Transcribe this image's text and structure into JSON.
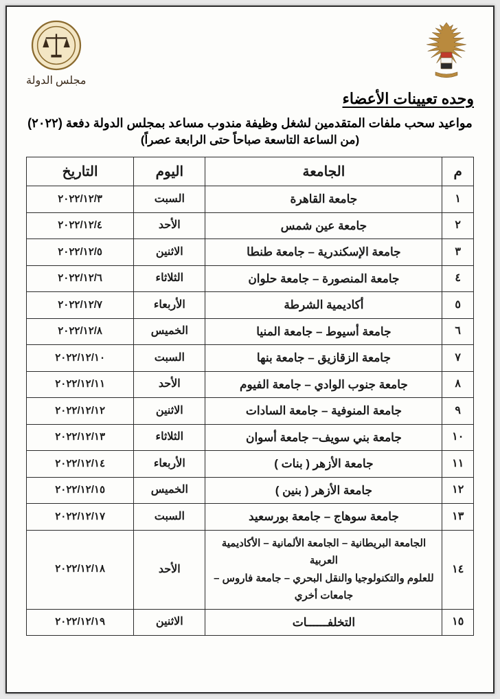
{
  "logos": {
    "eagle_caption": "",
    "seal_caption": "مجلس الدولة"
  },
  "department_title": "وحده تعيينات الأعضاء",
  "main_title": "مواعيد سحب ملفات المتقدمين لشغل وظيفة مندوب  مساعد بمجلس الدولة دفعة (٢٠٢٢)",
  "sub_title": "(من الساعة التاسعة صباحاً حتى الرابعة عصراً)",
  "table": {
    "headers": {
      "num": "م",
      "university": "الجامعة",
      "day": "اليوم",
      "date": "التاريخ"
    },
    "rows": [
      {
        "n": "١",
        "u": "جامعة القاهرة",
        "d": "السبت",
        "t": "٢٠٢٢/١٢/٣"
      },
      {
        "n": "٢",
        "u": "جامعة عين شمس",
        "d": "الأحد",
        "t": "٢٠٢٢/١٢/٤"
      },
      {
        "n": "٣",
        "u": "جامعة الإسكندرية – جامعة طنطا",
        "d": "الاثنين",
        "t": "٢٠٢٢/١٢/٥"
      },
      {
        "n": "٤",
        "u": "جامعة المنصورة – جامعة حلوان",
        "d": "الثلاثاء",
        "t": "٢٠٢٢/١٢/٦"
      },
      {
        "n": "٥",
        "u": "أكاديمية الشرطة",
        "d": "الأربعاء",
        "t": "٢٠٢٢/١٢/٧"
      },
      {
        "n": "٦",
        "u": "جامعة أسيوط – جامعة المنيا",
        "d": "الخميس",
        "t": "٢٠٢٢/١٢/٨"
      },
      {
        "n": "٧",
        "u": "جامعة الزقازيق – جامعة بنها",
        "d": "السبت",
        "t": "٢٠٢٢/١٢/١٠"
      },
      {
        "n": "٨",
        "u": "جامعة جنوب الوادي – جامعة الفيوم",
        "d": "الأحد",
        "t": "٢٠٢٢/١٢/١١"
      },
      {
        "n": "٩",
        "u": "جامعة المنوفية – جامعة السادات",
        "d": "الاثنين",
        "t": "٢٠٢٢/١٢/١٢"
      },
      {
        "n": "١٠",
        "u": "جامعة بني سويف– جامعة أسوان",
        "d": "الثلاثاء",
        "t": "٢٠٢٢/١٢/١٣"
      },
      {
        "n": "١١",
        "u": "جامعة الأزهر ( بنات )",
        "d": "الأربعاء",
        "t": "٢٠٢٢/١٢/١٤"
      },
      {
        "n": "١٢",
        "u": "جامعة الأزهر ( بنين )",
        "d": "الخميس",
        "t": "٢٠٢٢/١٢/١٥"
      },
      {
        "n": "١٣",
        "u": "جامعة سوهاج – جامعة بورسعيد",
        "d": "السبت",
        "t": "٢٠٢٢/١٢/١٧"
      },
      {
        "n": "١٤",
        "u": "الجامعة البريطانية – الجامعة الألمانية – الأكاديمية العربية\nللعلوم والتكنولوجيا والنقل البحري – جامعة فاروس –\nجامعات أخري",
        "d": "الأحد",
        "t": "٢٠٢٢/١٢/١٨",
        "multi": true
      },
      {
        "n": "١٥",
        "u": "التخلفــــــات",
        "d": "الاثنين",
        "t": "٢٠٢٢/١٢/١٩"
      }
    ]
  },
  "colors": {
    "page_bg": "#fdfdfb",
    "border": "#2b2b2b",
    "text": "#1a1a1a",
    "seal_gold": "#b98a3e",
    "eagle_gold": "#b98a3e"
  }
}
